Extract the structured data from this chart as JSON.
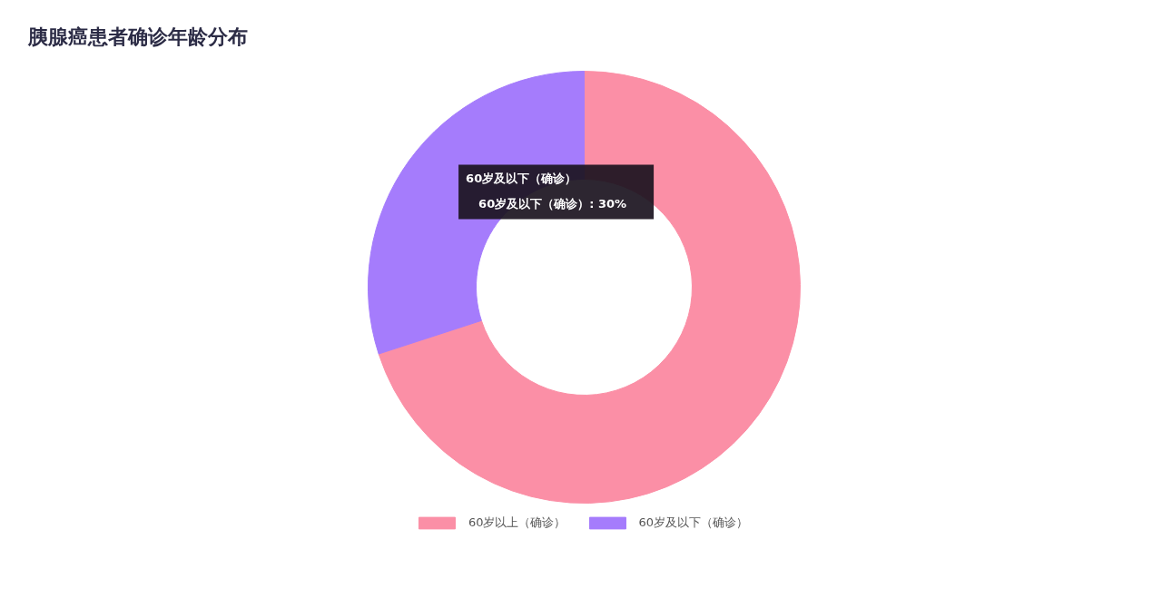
{
  "chart_data": {
    "type": "donut",
    "title": "胰腺癌患者确诊年龄分布",
    "categories": [
      "60岁以上（确诊）",
      "60岁及以下（确诊）"
    ],
    "values": [
      70,
      30
    ],
    "colors": [
      "#fb8fa6",
      "#a57cfc"
    ],
    "value_labels": [
      null,
      "60岁及以下（确诊）: 30%"
    ],
    "annotations": [
      "60岁及以下（确诊）"
    ],
    "legend": "bottom"
  }
}
